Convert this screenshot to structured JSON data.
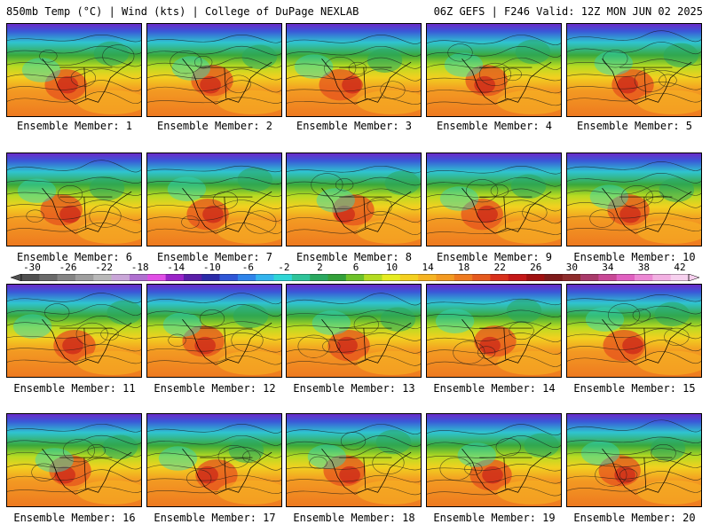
{
  "header": {
    "left": "850mb Temp (°C) | Wind (kts) | College of DuPage NEXLAB",
    "right": "06Z GEFS | F246 Valid: 12Z MON JUN 02 2025"
  },
  "members": [
    {
      "label": "Ensemble Member: 1"
    },
    {
      "label": "Ensemble Member: 2"
    },
    {
      "label": "Ensemble Member: 3"
    },
    {
      "label": "Ensemble Member: 4"
    },
    {
      "label": "Ensemble Member: 5"
    },
    {
      "label": "Ensemble Member: 6"
    },
    {
      "label": "Ensemble Member: 7"
    },
    {
      "label": "Ensemble Member: 8"
    },
    {
      "label": "Ensemble Member: 9"
    },
    {
      "label": "Ensemble Member: 10"
    },
    {
      "label": "Ensemble Member: 11"
    },
    {
      "label": "Ensemble Member: 12"
    },
    {
      "label": "Ensemble Member: 13"
    },
    {
      "label": "Ensemble Member: 14"
    },
    {
      "label": "Ensemble Member: 15"
    },
    {
      "label": "Ensemble Member: 16"
    },
    {
      "label": "Ensemble Member: 17"
    },
    {
      "label": "Ensemble Member: 18"
    },
    {
      "label": "Ensemble Member: 19"
    },
    {
      "label": "Ensemble Member: 20"
    }
  ],
  "colorbar": {
    "ticks": [
      "-30",
      "-26",
      "-22",
      "-18",
      "-14",
      "-10",
      "-6",
      "-2",
      "2",
      "6",
      "10",
      "14",
      "18",
      "22",
      "26",
      "30",
      "34",
      "38",
      "42"
    ],
    "colors": [
      "#505050",
      "#6a6a6a",
      "#858585",
      "#9e9e9e",
      "#b8b8b8",
      "#c9a6d8",
      "#b070d0",
      "#e14fe6",
      "#9a24c8",
      "#5a1ea8",
      "#2b2ba8",
      "#2f56d6",
      "#2f84ea",
      "#33b4ee",
      "#2fd6d6",
      "#2fc49a",
      "#2aa860",
      "#33a03a",
      "#6ec22a",
      "#b4dc22",
      "#e6ec22",
      "#f4d020",
      "#f6b423",
      "#f39a22",
      "#ee7a20",
      "#e55a1e",
      "#d8301c",
      "#c41818",
      "#a01010",
      "#7e1a1a",
      "#8e2c2c",
      "#a83a6a",
      "#c84896",
      "#e060c0",
      "#ec88d4",
      "#f2b0e2",
      "#f6d0ee"
    ]
  }
}
